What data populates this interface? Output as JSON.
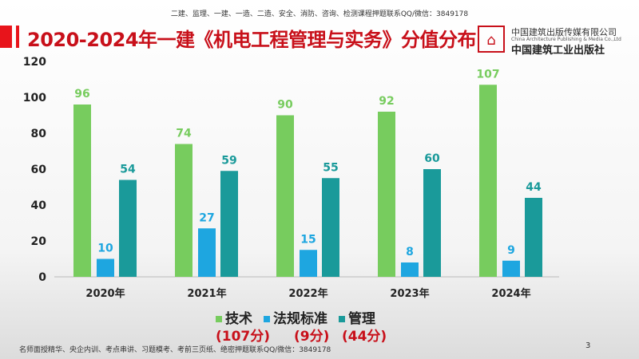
{
  "header": {
    "top_note": "二建、监理、一建、一造、二造、安全、消防、咨询、检测课程押题联系QQ/微信：3849178",
    "title": "2020-2024年一建《机电工程管理与实务》分值分布"
  },
  "publisher": {
    "name_cn": "中国建筑出版传媒有限公司",
    "name_en": "China Architecture Publishing & Media Co.,Ltd",
    "name_cn2": "中国建筑工业出版社",
    "logo_text": "中国建筑出版传媒有限公司"
  },
  "chart_data": {
    "type": "bar",
    "categories": [
      "2020年",
      "2021年",
      "2022年",
      "2023年",
      "2024年"
    ],
    "series": [
      {
        "name": "技术",
        "values": [
          96,
          74,
          90,
          92,
          107
        ],
        "color": "#77cc5e"
      },
      {
        "name": "法规标准",
        "values": [
          10,
          27,
          15,
          8,
          9
        ],
        "color": "#1ea6e0"
      },
      {
        "name": "管理",
        "values": [
          54,
          59,
          55,
          60,
          44
        ],
        "color": "#1a9a9a"
      }
    ],
    "ylim": [
      0,
      120
    ],
    "yticks": [
      0,
      20,
      40,
      60,
      80,
      100,
      120
    ],
    "grid": false,
    "legend": "bottom"
  },
  "legend_points": [
    "(107分)",
    "(9分)",
    "(44分)"
  ],
  "footer": {
    "note": "名师面授精华、央企内训、考点串讲、习题模考、考前三页纸、绝密押题联系QQ/微信：3849178",
    "page": "3"
  }
}
